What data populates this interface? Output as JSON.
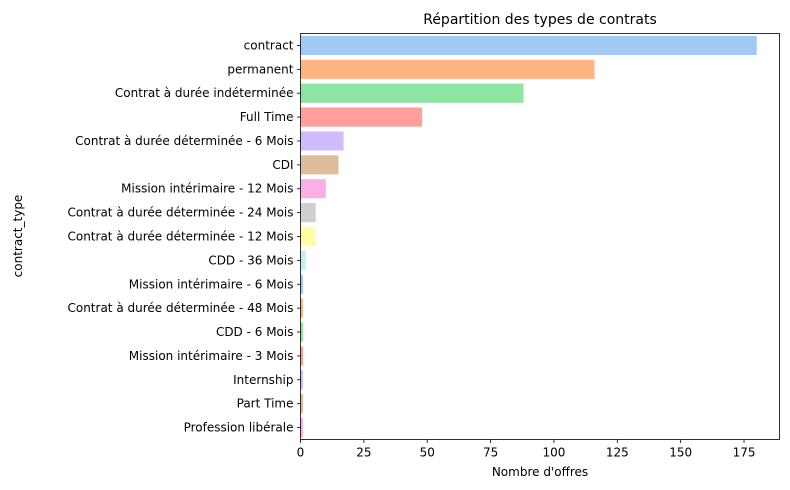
{
  "chart_data": {
    "type": "bar",
    "orientation": "horizontal",
    "title": "Répartition des types de contrats",
    "xlabel": "Nombre d'offres",
    "ylabel": "contract_type",
    "xlim": [
      0,
      189
    ],
    "xticks": [
      "0",
      "25",
      "50",
      "75",
      "100",
      "125",
      "150",
      "175"
    ],
    "grid": false,
    "categories": [
      "contract",
      "permanent",
      "Contrat à durée indéterminée",
      "Full Time",
      "Contrat à durée déterminée - 6 Mois",
      "CDI",
      "Mission intérimaire - 12 Mois",
      "Contrat à durée déterminée - 24 Mois",
      "Contrat à durée déterminée - 12 Mois",
      "CDD - 36 Mois",
      "Mission intérimaire - 6 Mois",
      "Contrat à durée déterminée - 48 Mois",
      "CDD - 6 Mois",
      "Mission intérimaire - 3 Mois",
      "Internship",
      "Part Time",
      "Profession libérale"
    ],
    "values": [
      180,
      116,
      88,
      48,
      17,
      15,
      10,
      6,
      6,
      2,
      1,
      1,
      1,
      1,
      1,
      1,
      1
    ],
    "colors": [
      "#a1c9f4",
      "#ffb482",
      "#8de5a1",
      "#ff9f9b",
      "#d0bbff",
      "#debb9b",
      "#fab0e4",
      "#cfcfcf",
      "#fffea3",
      "#b9f2f0",
      "#a1c9f4",
      "#ffb482",
      "#8de5a1",
      "#ff9f9b",
      "#d0bbff",
      "#debb9b",
      "#fab0e4"
    ]
  }
}
